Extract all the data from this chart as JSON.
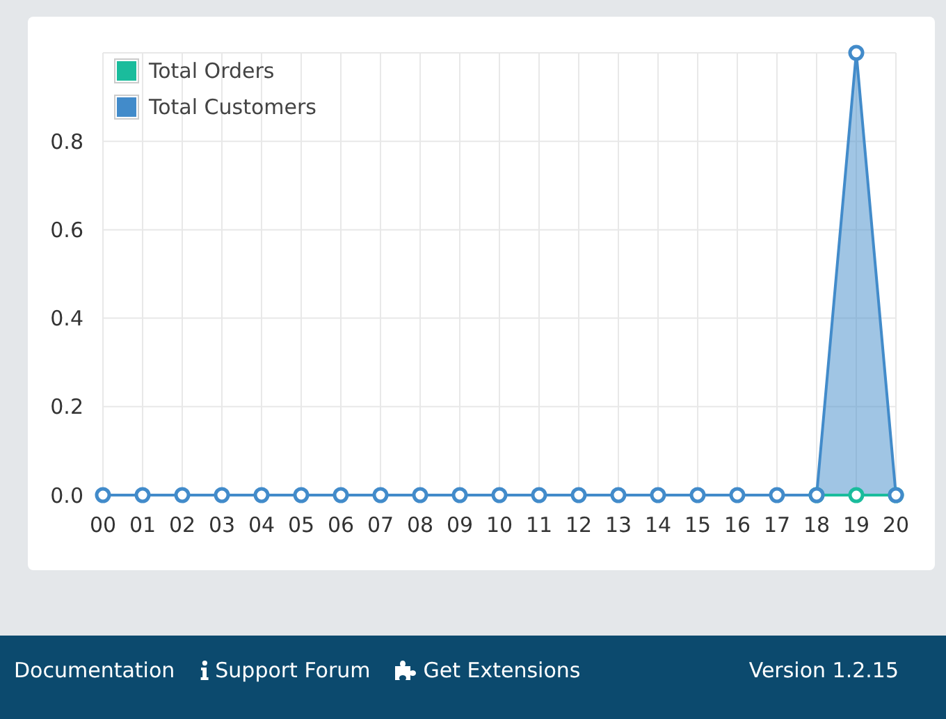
{
  "chart_data": {
    "type": "line",
    "categories": [
      "00",
      "01",
      "02",
      "03",
      "04",
      "05",
      "06",
      "07",
      "08",
      "09",
      "10",
      "11",
      "12",
      "13",
      "14",
      "15",
      "16",
      "17",
      "18",
      "19",
      "20"
    ],
    "series": [
      {
        "name": "Total Orders",
        "color": "#1abc9c",
        "values": [
          null,
          null,
          null,
          null,
          null,
          null,
          null,
          null,
          null,
          null,
          null,
          null,
          null,
          null,
          null,
          null,
          null,
          null,
          0,
          0,
          0
        ]
      },
      {
        "name": "Total Customers",
        "type": "area",
        "color": "#428bca",
        "values": [
          0,
          0,
          0,
          0,
          0,
          0,
          0,
          0,
          0,
          0,
          0,
          0,
          0,
          0,
          0,
          0,
          0,
          0,
          0,
          1,
          0
        ]
      }
    ],
    "ylim": [
      0,
      1
    ],
    "yticks": [
      {
        "value": 0,
        "label": "0.0"
      },
      0.2,
      0.4,
      0.6,
      0.8
    ],
    "grid": true,
    "legend": "top left",
    "marker": "circle",
    "annotations": [
      "Documentation",
      "Support Forum",
      "Get Extensions",
      "Version 1.2.15"
    ]
  }
}
